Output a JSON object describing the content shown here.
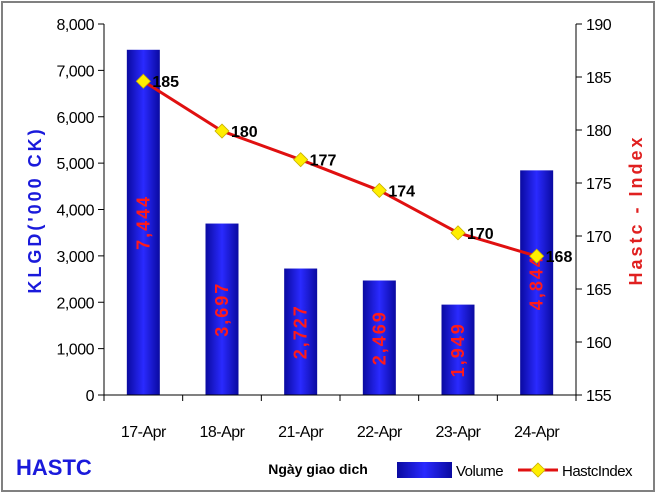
{
  "brand_label": "HASTC",
  "chart_data": {
    "type": "bar",
    "categories": [
      "17-Apr",
      "18-Apr",
      "21-Apr",
      "22-Apr",
      "23-Apr",
      "24-Apr"
    ],
    "series": [
      {
        "name": "Volume",
        "type": "bar",
        "axis": "left",
        "values": [
          7444,
          3697,
          2727,
          2469,
          1949,
          4844
        ],
        "labels": [
          "7,444",
          "3,697",
          "2,727",
          "2,469",
          "1,949",
          "4,844"
        ],
        "color": "#1a1adb"
      },
      {
        "name": "HastcIndex",
        "type": "line",
        "axis": "right",
        "values": [
          184.6,
          179.9,
          177.2,
          174.3,
          170.3,
          168.1
        ],
        "labels": [
          "185",
          "180",
          "177",
          "174",
          "170",
          "168"
        ],
        "color": "#e01010",
        "marker_color": "#ffee00"
      }
    ],
    "xlabel": "Ngày giao dich",
    "ylabel": "KLGD('000 CK)",
    "y2label": "Hastc - Index",
    "ylim": [
      0,
      8000
    ],
    "y2lim": [
      155,
      190
    ],
    "yticks": [
      "0",
      "1,000",
      "2,000",
      "3,000",
      "4,000",
      "5,000",
      "6,000",
      "7,000",
      "8,000"
    ],
    "y2ticks": [
      "155",
      "160",
      "165",
      "170",
      "175",
      "180",
      "185",
      "190"
    ],
    "legend_position": "bottom-right",
    "grid": false
  }
}
